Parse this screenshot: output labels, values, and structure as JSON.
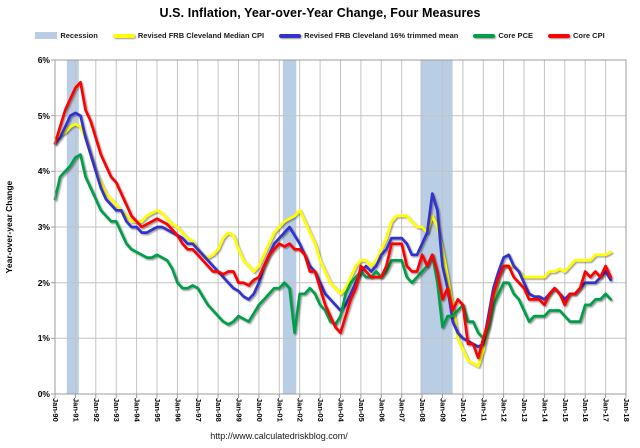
{
  "legend": {
    "items": [
      {
        "label": "Recession",
        "color": "#B9CDE5",
        "kind": "band"
      },
      {
        "label": "Revised FRB Cleveland Median CPI",
        "color": "#FFFF00",
        "kind": "line"
      },
      {
        "label": "Revised FRB Cleveland 16% trimmed mean",
        "color": "#3333CC",
        "kind": "line"
      },
      {
        "label": "Core PCE",
        "color": "#009E49",
        "kind": "line"
      },
      {
        "label": "Core CPI",
        "color": "#FF0000",
        "kind": "line"
      }
    ]
  },
  "footer": {
    "url": "http://www.calculatedriskblog.com/"
  },
  "chart_data": {
    "type": "line",
    "title": "U.S. Inflation, Year-over-Year Change, Four Measures",
    "xlabel": "",
    "ylabel": "Year-over-year Change",
    "ylim": [
      0,
      6
    ],
    "xlim": [
      1990,
      2018
    ],
    "grid": true,
    "legend_position": "top",
    "ytick_labels": [
      "0%",
      "1%",
      "2%",
      "3%",
      "4%",
      "5%",
      "6%"
    ],
    "xtick_labels": [
      "Jan-90",
      "Jan-91",
      "Jan-92",
      "Jan-93",
      "Jan-94",
      "Jan-95",
      "Jan-96",
      "Jan-97",
      "Jan-98",
      "Jan-99",
      "Jan-00",
      "Jan-01",
      "Jan-02",
      "Jan-03",
      "Jan-04",
      "Jan-05",
      "Jan-06",
      "Jan-07",
      "Jan-08",
      "Jan-09",
      "Jan-10",
      "Jan-11",
      "Jan-12",
      "Jan-13",
      "Jan-14",
      "Jan-15",
      "Jan-16",
      "Jan-17",
      "Jan-18"
    ],
    "x_start": 1990.0,
    "x_step": 0.25,
    "x_unit": "decimal-year, quarterly samples Jan/Apr/Jul/Oct, ending Apr-2017",
    "recession_color": "#B9CDE5",
    "recessions": [
      [
        1990.58,
        1991.17
      ],
      [
        2001.17,
        2001.83
      ],
      [
        2007.92,
        2009.5
      ]
    ],
    "series": [
      {
        "name": "Revised FRB Cleveland Median CPI",
        "color": "#FFFF00",
        "values": [
          4.6,
          4.65,
          4.7,
          4.8,
          4.85,
          4.8,
          4.6,
          4.3,
          4.0,
          3.8,
          3.6,
          3.5,
          3.4,
          3.3,
          3.2,
          3.1,
          3.1,
          3.1,
          3.2,
          3.25,
          3.3,
          3.25,
          3.15,
          3.05,
          3.0,
          2.9,
          2.8,
          2.75,
          2.6,
          2.5,
          2.45,
          2.5,
          2.6,
          2.8,
          2.9,
          2.85,
          2.6,
          2.4,
          2.3,
          2.2,
          2.3,
          2.5,
          2.7,
          2.9,
          3.0,
          3.1,
          3.15,
          3.2,
          3.3,
          3.1,
          2.9,
          2.7,
          2.4,
          2.2,
          2.0,
          1.9,
          1.8,
          1.9,
          2.1,
          2.3,
          2.4,
          2.4,
          2.3,
          2.4,
          2.6,
          2.8,
          3.1,
          3.2,
          3.2,
          3.2,
          3.1,
          3.0,
          3.0,
          2.9,
          3.2,
          3.0,
          2.6,
          2.1,
          1.6,
          1.0,
          0.8,
          0.6,
          0.55,
          0.5,
          0.8,
          1.2,
          1.7,
          2.1,
          2.3,
          2.3,
          2.3,
          2.2,
          2.1,
          2.1,
          2.1,
          2.1,
          2.1,
          2.2,
          2.2,
          2.25,
          2.2,
          2.3,
          2.4,
          2.4,
          2.4,
          2.4,
          2.5,
          2.5,
          2.5,
          2.55
        ]
      },
      {
        "name": "Revised FRB Cleveland 16% trimmed mean",
        "color": "#3333CC",
        "values": [
          4.5,
          4.6,
          4.8,
          5.0,
          5.05,
          5.0,
          4.6,
          4.3,
          4.0,
          3.7,
          3.5,
          3.4,
          3.3,
          3.3,
          3.1,
          3.0,
          3.0,
          2.9,
          2.9,
          2.95,
          3.0,
          3.0,
          2.95,
          2.9,
          2.85,
          2.8,
          2.7,
          2.7,
          2.6,
          2.5,
          2.4,
          2.3,
          2.2,
          2.1,
          2.0,
          1.9,
          1.85,
          1.75,
          1.7,
          1.8,
          2.0,
          2.3,
          2.5,
          2.7,
          2.8,
          2.9,
          3.0,
          2.85,
          2.7,
          2.5,
          2.3,
          2.2,
          2.0,
          1.8,
          1.7,
          1.6,
          1.5,
          1.6,
          1.8,
          2.0,
          2.2,
          2.3,
          2.2,
          2.3,
          2.5,
          2.6,
          2.8,
          2.8,
          2.8,
          2.7,
          2.5,
          2.5,
          2.7,
          2.9,
          3.6,
          3.3,
          2.3,
          1.9,
          1.3,
          1.1,
          1.0,
          0.95,
          0.9,
          0.85,
          0.9,
          1.4,
          1.9,
          2.2,
          2.45,
          2.5,
          2.3,
          2.2,
          2.0,
          1.8,
          1.75,
          1.75,
          1.7,
          1.8,
          1.9,
          1.8,
          1.7,
          1.8,
          1.8,
          1.9,
          2.0,
          2.0,
          2.0,
          2.1,
          2.2,
          2.05
        ]
      },
      {
        "name": "Core PCE",
        "color": "#009E49",
        "values": [
          3.5,
          3.9,
          4.0,
          4.1,
          4.25,
          4.3,
          3.9,
          3.7,
          3.5,
          3.3,
          3.2,
          3.1,
          3.1,
          2.9,
          2.7,
          2.6,
          2.55,
          2.5,
          2.45,
          2.45,
          2.5,
          2.45,
          2.4,
          2.25,
          2.0,
          1.9,
          1.9,
          1.95,
          1.9,
          1.75,
          1.6,
          1.5,
          1.4,
          1.3,
          1.25,
          1.3,
          1.4,
          1.35,
          1.3,
          1.45,
          1.6,
          1.7,
          1.8,
          1.9,
          1.9,
          2.0,
          1.9,
          1.1,
          1.8,
          1.8,
          1.9,
          1.8,
          1.6,
          1.5,
          1.3,
          1.25,
          1.4,
          1.8,
          2.0,
          2.1,
          2.2,
          2.1,
          2.1,
          2.2,
          2.1,
          2.2,
          2.4,
          2.4,
          2.4,
          2.1,
          2.0,
          2.1,
          2.2,
          2.3,
          2.5,
          2.0,
          1.2,
          1.4,
          1.4,
          1.5,
          1.6,
          1.3,
          1.3,
          1.1,
          1.0,
          1.2,
          1.6,
          1.8,
          2.0,
          2.0,
          1.8,
          1.7,
          1.5,
          1.3,
          1.4,
          1.4,
          1.4,
          1.5,
          1.5,
          1.5,
          1.4,
          1.3,
          1.3,
          1.3,
          1.6,
          1.6,
          1.7,
          1.7,
          1.8,
          1.7
        ]
      },
      {
        "name": "Core CPI",
        "color": "#FF0000",
        "values": [
          4.5,
          4.8,
          5.1,
          5.3,
          5.5,
          5.6,
          5.1,
          4.9,
          4.6,
          4.3,
          4.1,
          3.9,
          3.8,
          3.6,
          3.4,
          3.2,
          3.1,
          3.0,
          3.05,
          3.1,
          3.15,
          3.1,
          3.05,
          2.95,
          2.85,
          2.7,
          2.6,
          2.6,
          2.5,
          2.4,
          2.3,
          2.2,
          2.2,
          2.15,
          2.2,
          2.2,
          2.0,
          2.0,
          1.95,
          2.05,
          2.1,
          2.3,
          2.5,
          2.6,
          2.7,
          2.65,
          2.7,
          2.6,
          2.6,
          2.5,
          2.2,
          2.2,
          1.9,
          1.6,
          1.4,
          1.2,
          1.1,
          1.4,
          1.7,
          1.9,
          2.3,
          2.2,
          2.1,
          2.1,
          2.1,
          2.3,
          2.7,
          2.7,
          2.7,
          2.3,
          2.2,
          2.2,
          2.5,
          2.3,
          2.5,
          2.2,
          1.7,
          1.9,
          1.5,
          1.7,
          1.6,
          0.9,
          0.9,
          0.65,
          1.0,
          1.3,
          1.8,
          2.1,
          2.3,
          2.3,
          2.1,
          2.0,
          1.9,
          1.7,
          1.7,
          1.7,
          1.6,
          1.8,
          1.9,
          1.8,
          1.6,
          1.8,
          1.8,
          1.9,
          2.2,
          2.1,
          2.2,
          2.1,
          2.3,
          2.1
        ]
      }
    ]
  }
}
